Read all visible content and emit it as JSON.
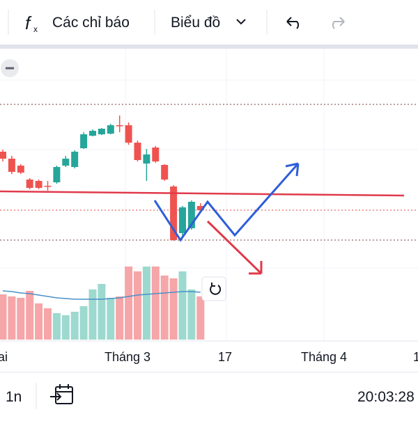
{
  "toolbar": {
    "indicators": "Các chỉ báo",
    "chart_type": "Biểu đồ"
  },
  "chart_data": {
    "type": "candlestick",
    "open": [
      91,
      86,
      81,
      71,
      70,
      66.5,
      69,
      81,
      80,
      93.5,
      102.5,
      103.5,
      104,
      110,
      110,
      97.5,
      82.5,
      94,
      81.5,
      66,
      32.5,
      36,
      52
    ],
    "close": [
      86,
      76.5,
      76,
      65,
      65,
      66,
      80,
      86,
      91,
      103.5,
      106,
      107.5,
      110,
      109.5,
      97.5,
      85,
      89,
      84,
      71,
      27.5,
      51,
      55,
      49
    ],
    "high": [
      92.5,
      88,
      82,
      72,
      71,
      70,
      81,
      88,
      92,
      105,
      107,
      108,
      111,
      117,
      112,
      99,
      93,
      95,
      82,
      67,
      52,
      56,
      54
    ],
    "low": [
      84,
      75,
      75,
      64,
      64,
      63,
      68,
      80,
      79,
      93,
      102,
      103,
      103.5,
      105,
      96,
      84,
      70,
      83,
      70,
      27,
      30,
      35,
      48
    ],
    "volume": [
      65,
      62,
      60,
      70,
      52,
      45,
      38,
      35,
      40,
      48,
      72,
      80,
      60,
      62,
      105,
      98,
      105,
      105,
      92,
      88,
      98,
      72,
      62
    ],
    "volume_ma": [
      70,
      69,
      67,
      66,
      64,
      62,
      60,
      59,
      58,
      58,
      58,
      58,
      59,
      60,
      62,
      64,
      65,
      66,
      67,
      68,
      69,
      69,
      68
    ],
    "up_color": "#26a69a",
    "down_color": "#ef5350",
    "volume_up_color": "#9dd9cf",
    "volume_down_color": "#f6a5a8",
    "ma_color": "#4a90c8",
    "ylim": [
      0,
      200
    ],
    "volume_lim": [
      0,
      100
    ],
    "x_axis_labels": [
      "g Hai",
      "Tháng 3",
      "17",
      "Tháng 4",
      "1"
    ]
  },
  "status_bar": {
    "interval": "1n",
    "clock": "20:03:28"
  }
}
